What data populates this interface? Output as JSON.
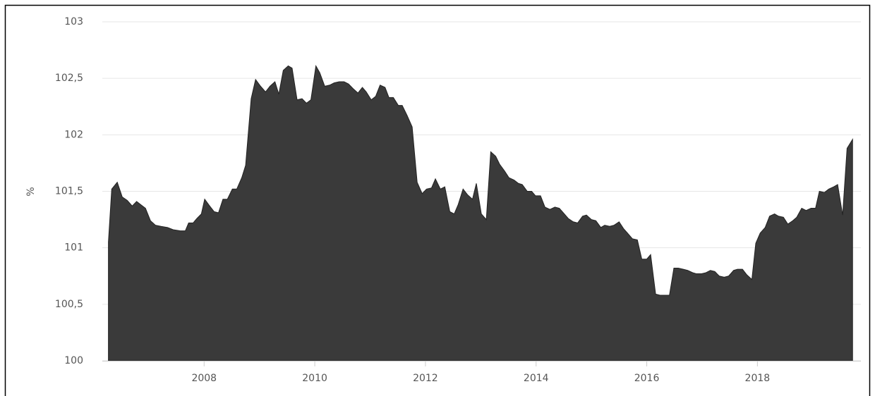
{
  "chart_data": {
    "type": "area",
    "y_label": "%",
    "color": "#3a3a3a",
    "x": [
      2006.27,
      2006.33,
      2006.43,
      2006.52,
      2006.61,
      2006.7,
      2006.78,
      2006.86,
      2006.94,
      2007.03,
      2007.12,
      2007.22,
      2007.34,
      2007.44,
      2007.57,
      2007.66,
      2007.72,
      2007.8,
      2007.87,
      2007.95,
      2008.01,
      2008.1,
      2008.18,
      2008.26,
      2008.34,
      2008.42,
      2008.51,
      2008.59,
      2008.68,
      2008.75,
      2008.85,
      2008.93,
      2009.02,
      2009.11,
      2009.19,
      2009.28,
      2009.35,
      2009.43,
      2009.52,
      2009.59,
      2009.68,
      2009.77,
      2009.85,
      2009.93,
      2010.02,
      2010.09,
      2010.18,
      2010.27,
      2010.35,
      2010.44,
      2010.53,
      2010.61,
      2010.69,
      2010.78,
      2010.86,
      2010.93,
      2011.02,
      2011.1,
      2011.18,
      2011.27,
      2011.34,
      2011.42,
      2011.51,
      2011.58,
      2011.67,
      2011.76,
      2011.85,
      2011.94,
      2012.02,
      2012.11,
      2012.18,
      2012.27,
      2012.35,
      2012.44,
      2012.52,
      2012.59,
      2012.68,
      2012.76,
      2012.85,
      2012.92,
      2013.01,
      2013.1,
      2013.18,
      2013.27,
      2013.34,
      2013.43,
      2013.51,
      2013.6,
      2013.68,
      2013.75,
      2013.84,
      2013.92,
      2013.99,
      2014.08,
      2014.16,
      2014.25,
      2014.34,
      2014.42,
      2014.51,
      2014.58,
      2014.67,
      2014.75,
      2014.84,
      2014.91,
      2015.0,
      2015.08,
      2015.17,
      2015.24,
      2015.33,
      2015.41,
      2015.5,
      2015.58,
      2015.67,
      2015.74,
      2015.83,
      2015.91,
      2016.0,
      2016.07,
      2016.16,
      2016.24,
      2016.33,
      2016.41,
      2016.49,
      2016.57,
      2016.66,
      2016.74,
      2016.83,
      2016.9,
      2016.99,
      2017.07,
      2017.15,
      2017.23,
      2017.31,
      2017.4,
      2017.48,
      2017.57,
      2017.64,
      2017.73,
      2017.81,
      2017.9,
      2017.97,
      2018.05,
      2018.14,
      2018.22,
      2018.31,
      2018.38,
      2018.47,
      2018.55,
      2018.64,
      2018.71,
      2018.8,
      2018.88,
      2018.97,
      2019.05,
      2019.12,
      2019.21,
      2019.29,
      2019.38,
      2019.45,
      2019.54,
      2019.62,
      2019.72
    ],
    "values": [
      101.05,
      101.52,
      101.58,
      101.45,
      101.42,
      101.37,
      101.41,
      101.38,
      101.35,
      101.24,
      101.2,
      101.19,
      101.18,
      101.16,
      101.15,
      101.15,
      101.22,
      101.22,
      101.26,
      101.3,
      101.43,
      101.37,
      101.32,
      101.31,
      101.43,
      101.43,
      101.52,
      101.52,
      101.62,
      101.73,
      102.32,
      102.49,
      102.43,
      102.38,
      102.43,
      102.47,
      102.36,
      102.57,
      102.61,
      102.59,
      102.31,
      102.32,
      102.28,
      102.31,
      102.61,
      102.55,
      102.43,
      102.44,
      102.46,
      102.47,
      102.47,
      102.45,
      102.41,
      102.37,
      102.42,
      102.38,
      102.31,
      102.34,
      102.44,
      102.42,
      102.33,
      102.33,
      102.26,
      102.26,
      102.17,
      102.07,
      101.58,
      101.48,
      101.52,
      101.53,
      101.61,
      101.52,
      101.54,
      101.32,
      101.3,
      101.38,
      101.52,
      101.47,
      101.43,
      101.57,
      101.3,
      101.25,
      101.85,
      101.81,
      101.74,
      101.68,
      101.62,
      101.6,
      101.57,
      101.56,
      101.5,
      101.5,
      101.46,
      101.46,
      101.36,
      101.34,
      101.36,
      101.35,
      101.3,
      101.26,
      101.23,
      101.22,
      101.28,
      101.29,
      101.25,
      101.24,
      101.18,
      101.2,
      101.19,
      101.2,
      101.23,
      101.17,
      101.12,
      101.08,
      101.07,
      100.9,
      100.9,
      100.94,
      100.59,
      100.58,
      100.58,
      100.58,
      100.82,
      100.82,
      100.81,
      100.8,
      100.78,
      100.77,
      100.77,
      100.78,
      100.8,
      100.79,
      100.75,
      100.74,
      100.75,
      100.8,
      100.81,
      100.81,
      100.76,
      100.72,
      101.04,
      101.13,
      101.18,
      101.28,
      101.3,
      101.28,
      101.27,
      101.21,
      101.24,
      101.27,
      101.35,
      101.33,
      101.35,
      101.35,
      101.5,
      101.49,
      101.52,
      101.54,
      101.56,
      101.29,
      101.88,
      101.96
    ],
    "xlim": [
      2006.16,
      2019.87
    ],
    "xticks": [
      2008,
      2010,
      2012,
      2014,
      2016,
      2018
    ],
    "ylim": [
      100,
      103
    ],
    "yticks": [
      100,
      {
        "value": 100.5,
        "label": "100,5"
      },
      101,
      {
        "value": 101.5,
        "label": "101,5"
      },
      102,
      {
        "value": 102.5,
        "label": "102,5"
      },
      103
    ],
    "grid": true
  }
}
